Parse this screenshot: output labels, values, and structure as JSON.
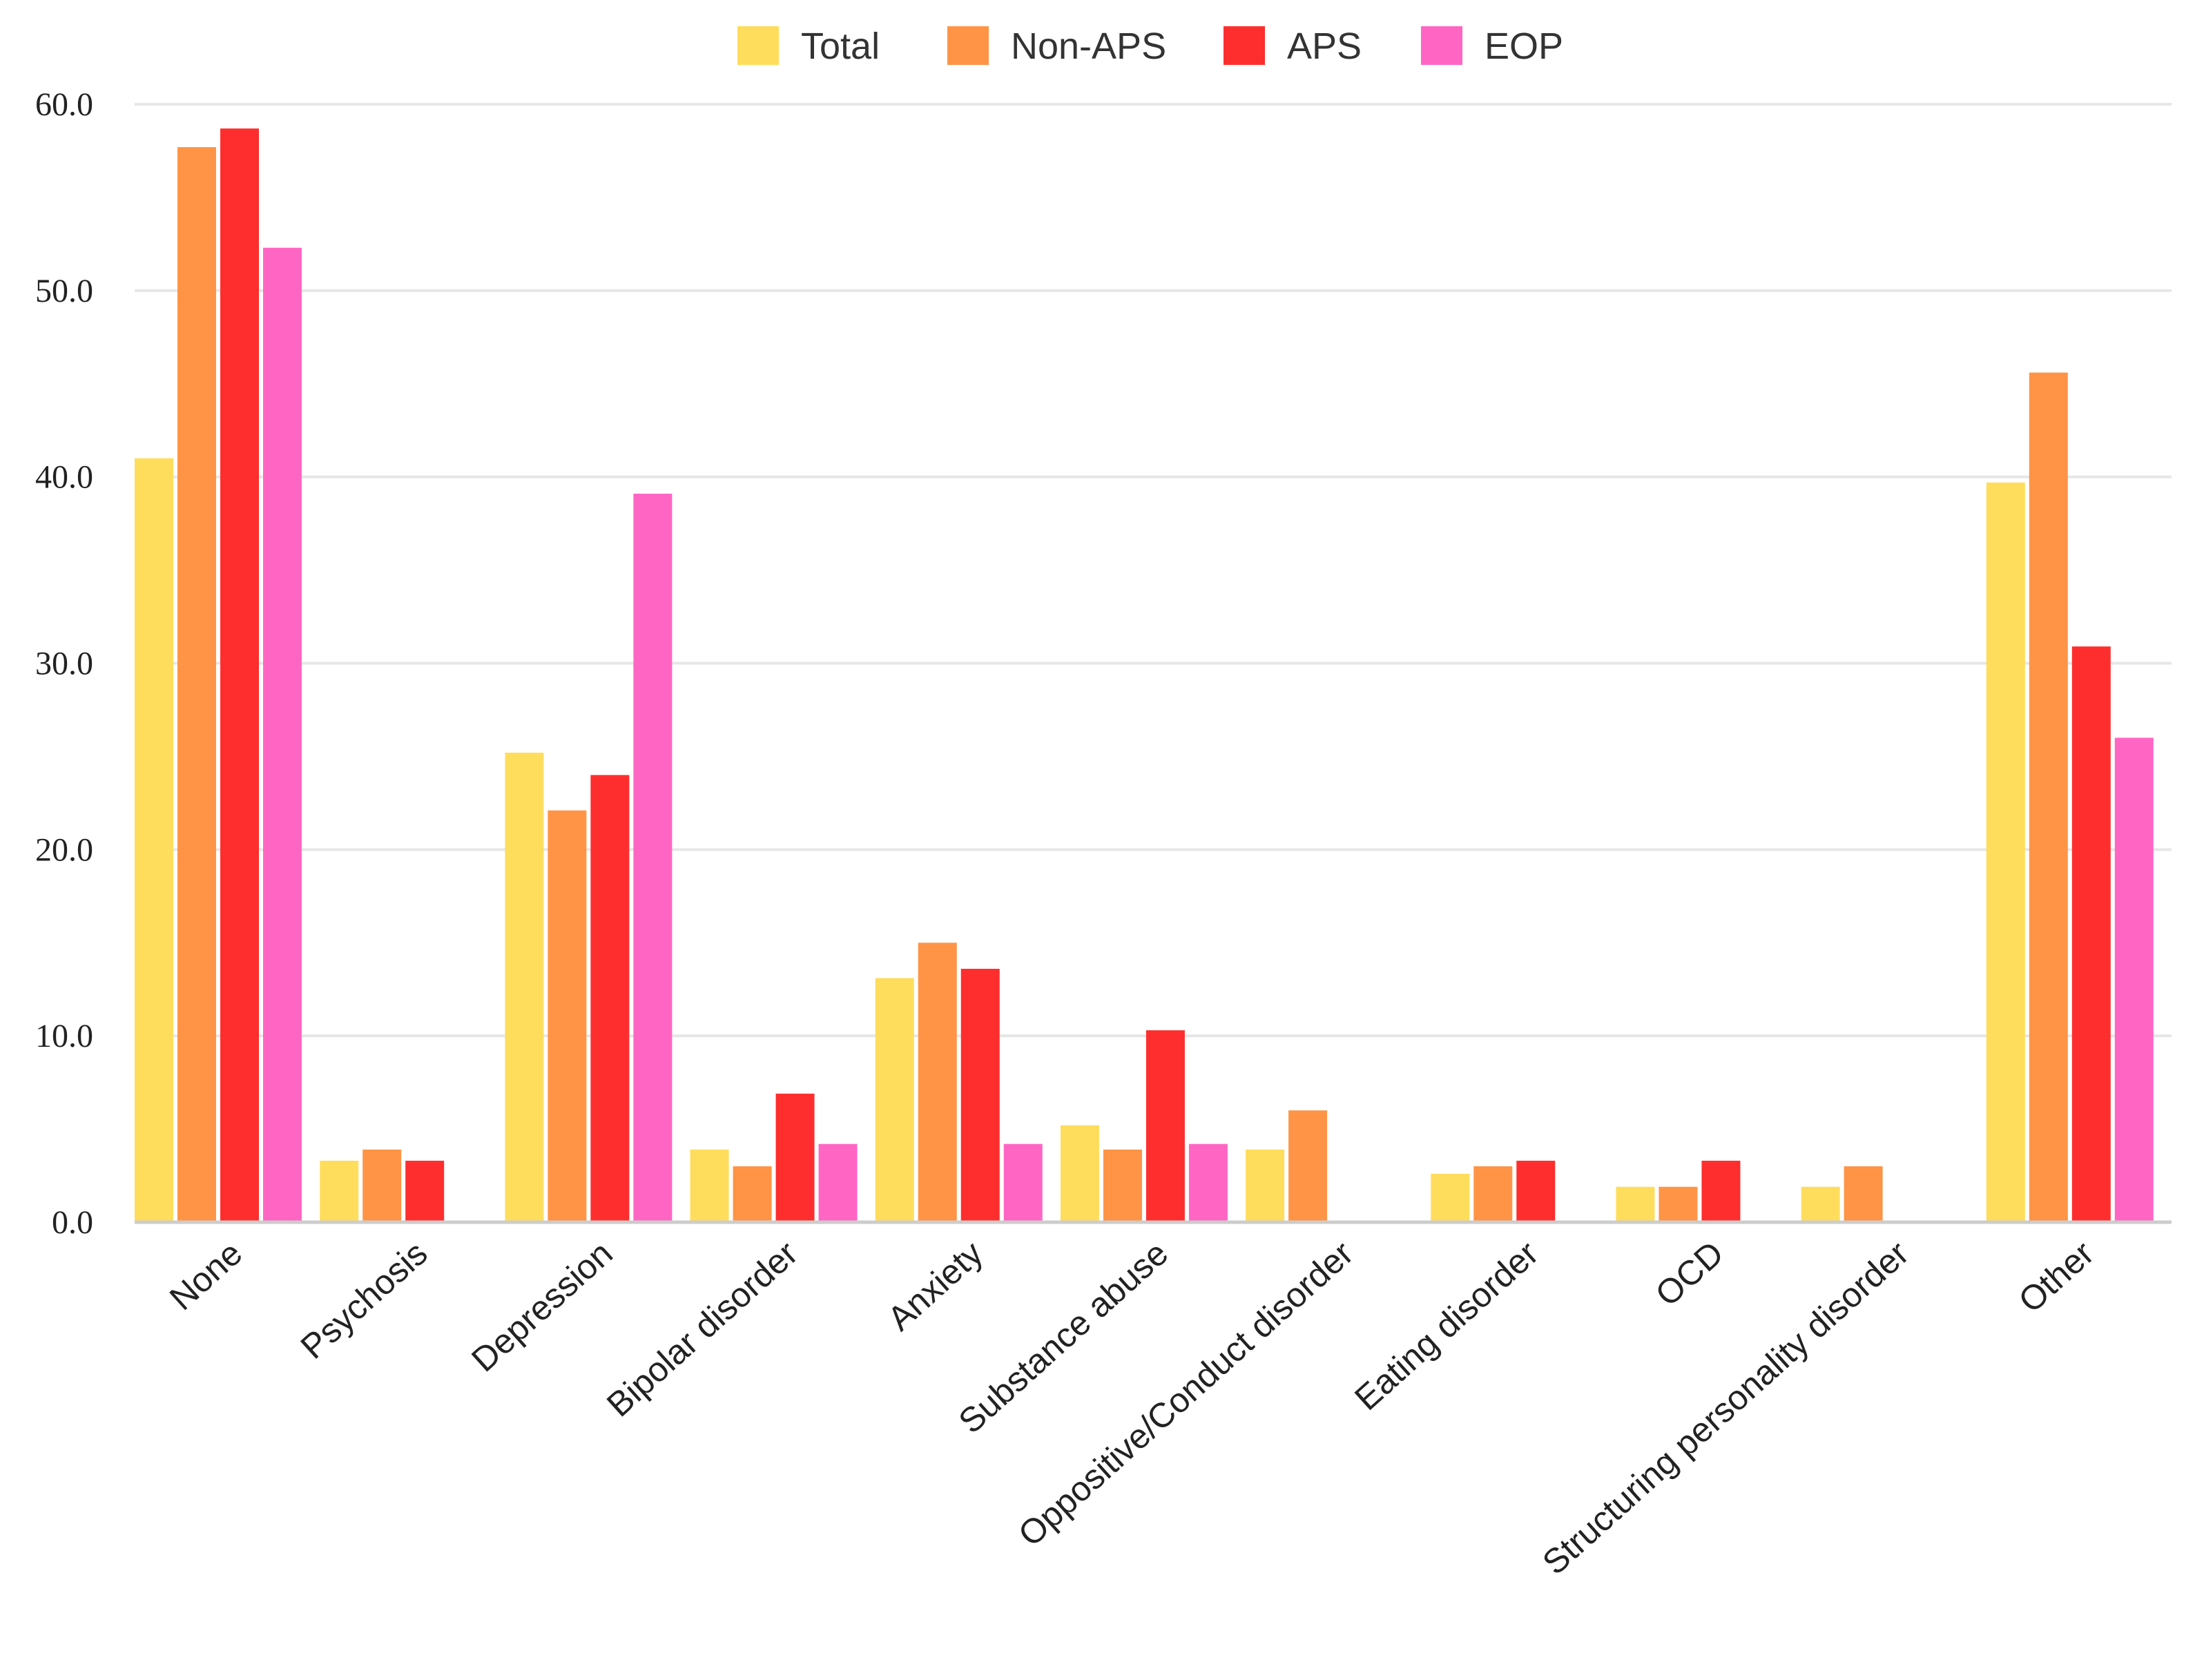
{
  "chart_data": {
    "type": "bar",
    "title": "",
    "xlabel": "",
    "ylabel": "",
    "ylim": [
      0,
      60
    ],
    "yticks": [
      "0.0",
      "10.0",
      "20.0",
      "30.0",
      "40.0",
      "50.0",
      "60.0"
    ],
    "grid": true,
    "legend_position": "top-center",
    "categories": [
      "None",
      "Psychosis",
      "Depression",
      "Bipolar disorder",
      "Anxiety",
      "Substance abuse",
      "Oppositive/Conduct disorder",
      "Eating disorder",
      "OCD",
      "Structuring personality disorder",
      "Other"
    ],
    "series": [
      {
        "name": "Total",
        "color": "#FFDD5C",
        "values": [
          41.0,
          3.3,
          25.2,
          3.9,
          13.1,
          5.2,
          3.9,
          2.6,
          1.9,
          1.9,
          39.7
        ]
      },
      {
        "name": "Non-APS",
        "color": "#FF9446",
        "values": [
          57.7,
          3.9,
          22.1,
          3.0,
          15.0,
          3.9,
          6.0,
          3.0,
          1.9,
          3.0,
          45.6
        ]
      },
      {
        "name": "APS",
        "color": "#FF2E2E",
        "values": [
          58.7,
          3.3,
          24.0,
          6.9,
          13.6,
          10.3,
          0,
          3.3,
          3.3,
          0,
          30.9
        ]
      },
      {
        "name": "EOP",
        "color": "#FF66C4",
        "values": [
          52.3,
          0,
          39.1,
          4.2,
          4.2,
          4.2,
          0,
          0,
          0,
          0,
          26.0
        ]
      }
    ]
  }
}
